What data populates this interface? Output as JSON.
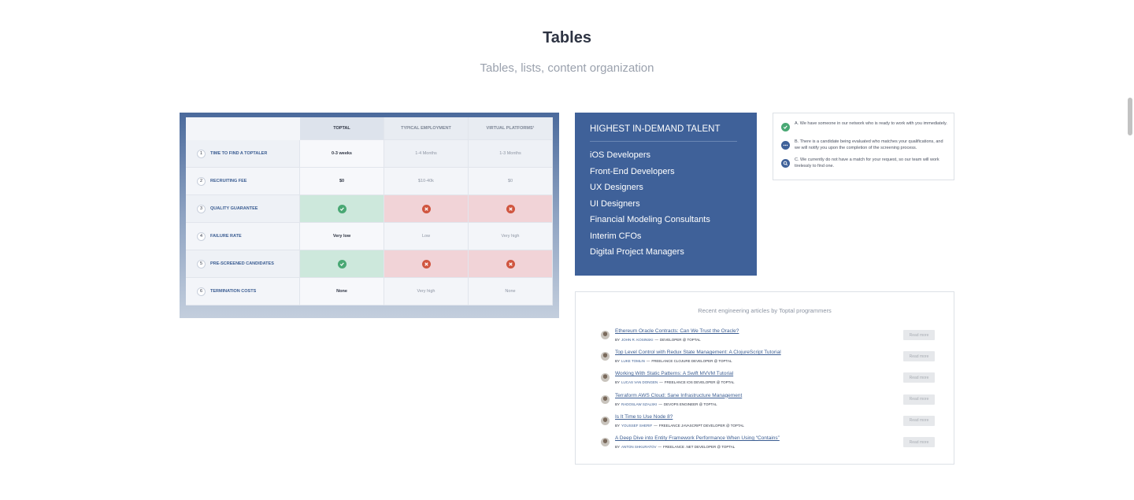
{
  "header": {
    "title": "Tables",
    "subtitle": "Tables, lists, content organization"
  },
  "comparison": {
    "columns": [
      "TOPTAL",
      "TYPICAL EMPLOYMENT",
      "VIRTUAL PLATFORMS¹"
    ],
    "rows": [
      {
        "number": "1",
        "label": "TIME TO FIND A TOPTALER",
        "values": [
          "0-3 weeks",
          "1-4 Months",
          "1-3 Months"
        ]
      },
      {
        "number": "2",
        "label": "RECRUITING FEE",
        "values": [
          "$0",
          "$10-40k",
          "$0"
        ]
      },
      {
        "number": "3",
        "label": "QUALITY GUARANTEE"
      },
      {
        "number": "4",
        "label": "FAILURE RATE",
        "values": [
          "Very low",
          "Low",
          "Very high"
        ]
      },
      {
        "number": "5",
        "label": "PRE-SCREENED CANDIDATES"
      },
      {
        "number": "6",
        "label": "TERMINATION COSTS",
        "values": [
          "None",
          "Very high",
          "None"
        ]
      }
    ]
  },
  "talent": {
    "title": "HIGHEST IN-DEMAND TALENT",
    "items": [
      "iOS Developers",
      "Front-End Developers",
      "UX Designers",
      "UI Designers",
      "Financial Modeling Consultants",
      "Interim CFOs",
      "Digital Project Managers"
    ]
  },
  "status": {
    "items": [
      "A. We have someone in our network who is ready to work with you immediately.",
      "B. There is a candidate being evaluated who matches your qualifications, and we will notify you upon the completion of the screening process.",
      "C. We currently do not have a match for your request, so our team will work tirelessly to find one."
    ]
  },
  "articles": {
    "heading": "Recent engineering articles by Toptal programmers",
    "by": "BY",
    "separator": "—",
    "button": "Read more",
    "items": [
      {
        "title": "Ethereum Oracle Contracts: Can We Trust the Oracle?",
        "author": "JOHN R. KOSINSKI",
        "role": "DEVELOPER @ TOPTAL"
      },
      {
        "title": "Top Level Control with Redux State Management: A ClojureScript Tutorial",
        "author": "LUKE TOMLIN",
        "role": "FREELANCE CLOJURE DEVELOPER @ TOPTAL"
      },
      {
        "title": "Working With Static Patterns: A Swift MVVM Tutorial",
        "author": "LUCAS VAN DONGEN",
        "role": "FREELANCE IOS DEVELOPER @ TOPTAL"
      },
      {
        "title": "Terraform AWS Cloud: Sane Infrastructure Management",
        "author": "RADOSLAW SZALSKI",
        "role": "DEVOPS ENGINEER @ TOPTAL"
      },
      {
        "title": "Is It Time to Use Node 8?",
        "author": "YOUSSEF SHERIF",
        "role": "FREELANCE JAVASCRIPT DEVELOPER @ TOPTAL"
      },
      {
        "title": "A Deep Dive into Entity Framework Performance When Using “Contains”",
        "author": "ANTON SHKURATOV",
        "role": "FREELANCE .NET DEVELOPER @ TOPTAL"
      }
    ]
  }
}
